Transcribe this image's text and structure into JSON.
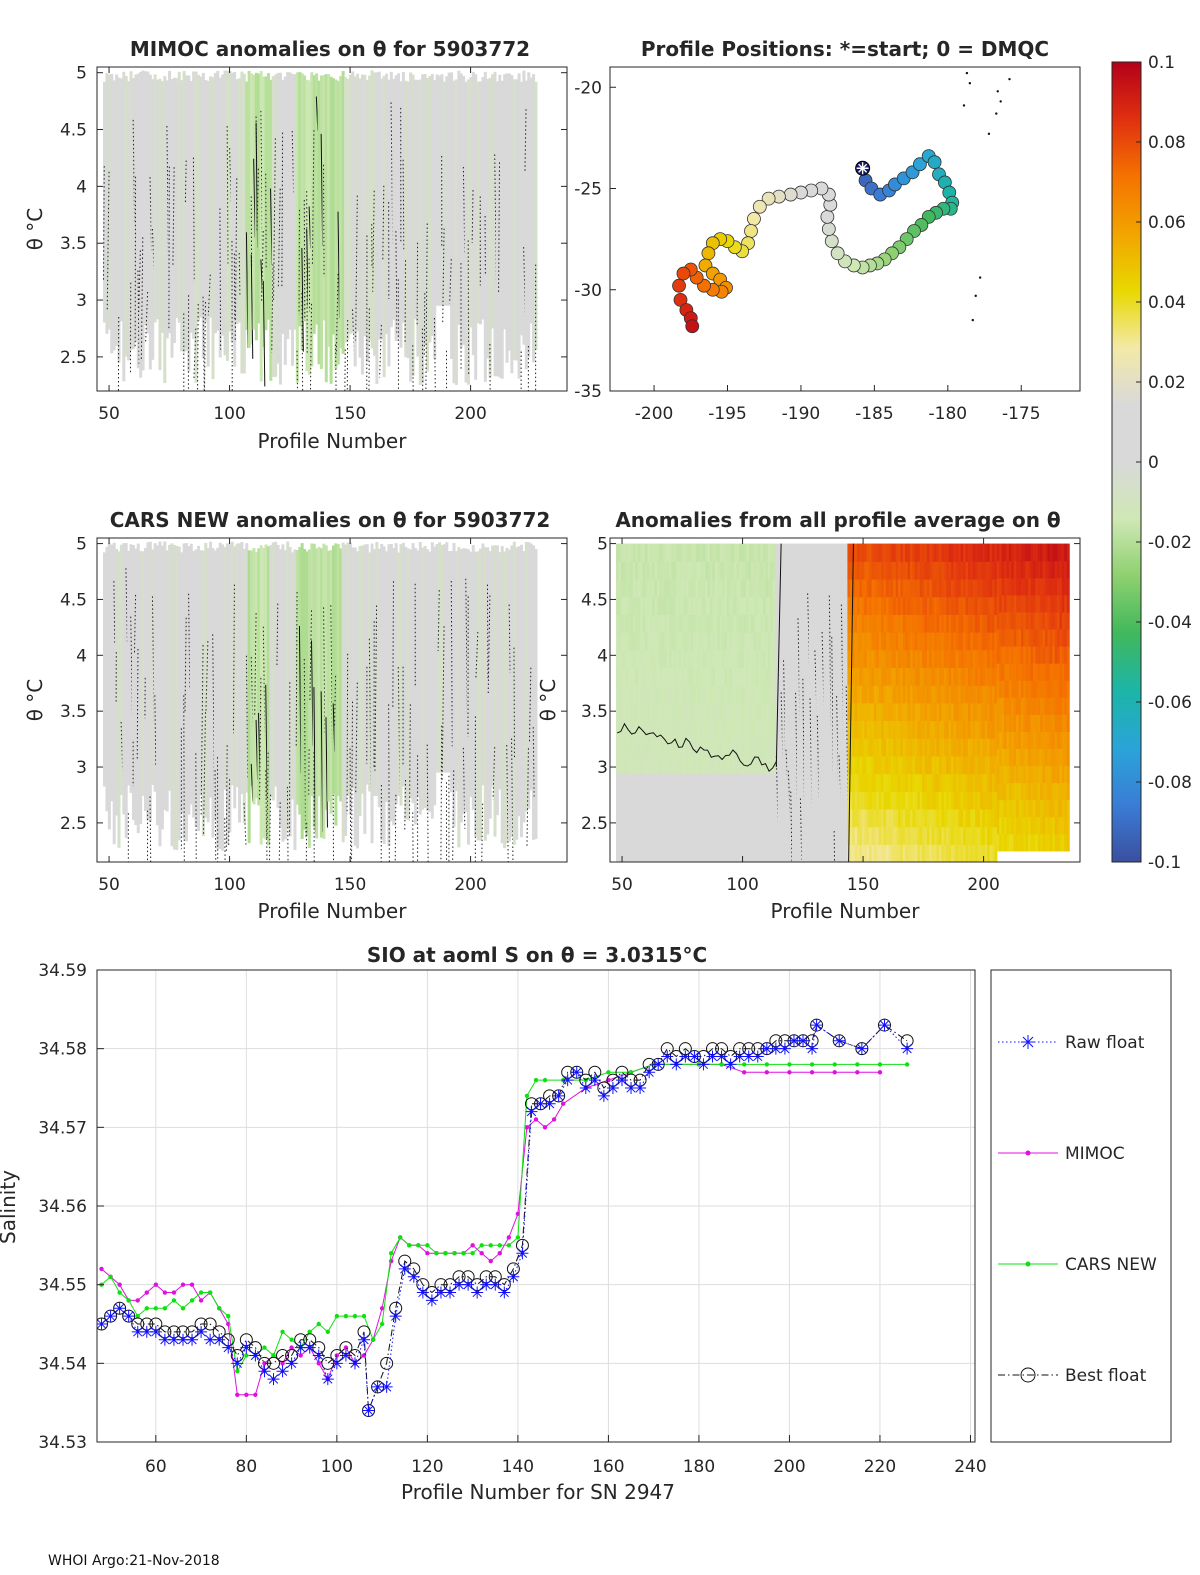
{
  "figure_id": "WHOI Argo QC figure",
  "footer": "WHOI Argo:21-Nov-2018",
  "chart_data": [
    {
      "type": "heatmap",
      "name": "mimoc-anomaly",
      "title": "MIMOC anomalies on θ  for 5903772",
      "xlabel": "Profile Number",
      "ylabel": "θ °C",
      "xlim": [
        45,
        240
      ],
      "ylim": [
        2.2,
        5.05
      ],
      "xticks": [
        50,
        100,
        150,
        200
      ],
      "yticks": [
        2.5,
        3,
        3.5,
        4,
        4.5,
        5
      ],
      "profile_start": 48,
      "profile_end": 227,
      "dominant_value": 0.0,
      "green_bands": [
        [
          107,
          117
        ],
        [
          128,
          147
        ]
      ],
      "colorbar": "shared"
    },
    {
      "type": "scatter",
      "name": "profile-positions",
      "title": "Profile Positions: *=start; 0 = DMQC",
      "xlim": [
        -203,
        -171
      ],
      "ylim": [
        -35,
        -19
      ],
      "xticks": [
        -200,
        -195,
        -190,
        -185,
        -180,
        -175
      ],
      "yticks": [
        -20,
        -25,
        -30,
        -35
      ],
      "start_marker": {
        "lon": -185.8,
        "lat": -24
      },
      "track": [
        [
          -185.8,
          -24.0
        ],
        [
          -185.6,
          -24.6
        ],
        [
          -185.2,
          -25.0
        ],
        [
          -184.6,
          -25.3
        ],
        [
          -184.0,
          -25.1
        ],
        [
          -183.6,
          -24.8
        ],
        [
          -183.0,
          -24.5
        ],
        [
          -182.4,
          -24.2
        ],
        [
          -181.9,
          -23.8
        ],
        [
          -181.3,
          -23.4
        ],
        [
          -180.9,
          -23.7
        ],
        [
          -180.6,
          -24.3
        ],
        [
          -180.2,
          -24.7
        ],
        [
          -179.9,
          -25.2
        ],
        [
          -179.7,
          -25.7
        ],
        [
          -179.8,
          -26.0
        ],
        [
          -180.3,
          -26.0
        ],
        [
          -180.8,
          -26.2
        ],
        [
          -181.3,
          -26.4
        ],
        [
          -181.8,
          -26.8
        ],
        [
          -182.3,
          -27.1
        ],
        [
          -182.8,
          -27.5
        ],
        [
          -183.3,
          -27.9
        ],
        [
          -183.8,
          -28.2
        ],
        [
          -184.3,
          -28.5
        ],
        [
          -184.8,
          -28.7
        ],
        [
          -185.3,
          -28.8
        ],
        [
          -185.8,
          -28.9
        ],
        [
          -186.4,
          -28.8
        ],
        [
          -187.0,
          -28.6
        ],
        [
          -187.5,
          -28.2
        ],
        [
          -187.9,
          -27.6
        ],
        [
          -188.1,
          -27.0
        ],
        [
          -188.2,
          -26.4
        ],
        [
          -188.0,
          -25.8
        ],
        [
          -188.1,
          -25.3
        ],
        [
          -188.6,
          -25.0
        ],
        [
          -189.3,
          -25.1
        ],
        [
          -190.0,
          -25.2
        ],
        [
          -190.7,
          -25.3
        ],
        [
          -191.5,
          -25.4
        ],
        [
          -192.2,
          -25.5
        ],
        [
          -192.8,
          -25.9
        ],
        [
          -193.2,
          -26.5
        ],
        [
          -193.4,
          -27.1
        ],
        [
          -193.6,
          -27.7
        ],
        [
          -194.0,
          -28.1
        ],
        [
          -194.5,
          -27.9
        ],
        [
          -195.0,
          -27.6
        ],
        [
          -195.5,
          -27.5
        ],
        [
          -196.0,
          -27.7
        ],
        [
          -196.3,
          -28.2
        ],
        [
          -196.5,
          -28.8
        ],
        [
          -196.0,
          -29.2
        ],
        [
          -195.5,
          -29.5
        ],
        [
          -195.1,
          -29.9
        ],
        [
          -195.4,
          -30.1
        ],
        [
          -196.0,
          -30.0
        ],
        [
          -196.6,
          -29.8
        ],
        [
          -197.1,
          -29.4
        ],
        [
          -197.5,
          -29.0
        ],
        [
          -198.0,
          -29.2
        ],
        [
          -198.3,
          -29.8
        ],
        [
          -198.2,
          -30.5
        ],
        [
          -197.8,
          -31.0
        ],
        [
          -197.5,
          -31.4
        ],
        [
          -197.4,
          -31.8
        ]
      ],
      "colorbar": "shared"
    },
    {
      "type": "heatmap",
      "name": "cars-anomaly",
      "title": "CARS NEW anomalies on θ for 5903772",
      "xlabel": "Profile Number",
      "ylabel": "θ °C",
      "xlim": [
        45,
        240
      ],
      "ylim": [
        2.15,
        5.05
      ],
      "xticks": [
        50,
        100,
        150,
        200
      ],
      "yticks": [
        2.5,
        3,
        3.5,
        4,
        4.5,
        5
      ],
      "profile_start": 48,
      "profile_end": 227,
      "dominant_value": 0.0,
      "green_bands": [
        [
          108,
          116
        ],
        [
          128,
          146
        ]
      ],
      "colorbar": "shared"
    },
    {
      "type": "heatmap",
      "name": "profile-average-anomaly",
      "title": "Anomalies from all profile average on θ",
      "xlabel": "Profile Number",
      "ylabel": "θ °C",
      "xlim": [
        45,
        240
      ],
      "ylim": [
        2.15,
        5.05
      ],
      "xticks": [
        50,
        100,
        150,
        200
      ],
      "yticks": [
        2.5,
        3,
        3.5,
        4,
        4.5,
        5
      ],
      "segments": [
        {
          "from": 48,
          "to": 114,
          "value": -0.012
        },
        {
          "from": 114,
          "to": 144,
          "value": 0.0
        },
        {
          "from": 144,
          "to": 236,
          "value": 0.07
        }
      ],
      "colorbar": "shared"
    },
    {
      "type": "colorbar",
      "name": "colorbar",
      "range": [
        -0.1,
        0.1
      ],
      "ticks": [
        "0.1",
        "0.08",
        "0.06",
        "0.04",
        "0.02",
        "0",
        "-0.02",
        "-0.04",
        "-0.06",
        "-0.08",
        "-0.1"
      ],
      "stops": [
        "#3b4fa0",
        "#3a7dd6",
        "#2aa4d8",
        "#1cb5a7",
        "#40b85c",
        "#8ed06f",
        "#cfe8b5",
        "#d9d9d9",
        "#d9d9d9",
        "#f3e9a7",
        "#e8d800",
        "#f2a400",
        "#f57200",
        "#e03010",
        "#b40018"
      ]
    },
    {
      "type": "line",
      "name": "salinity-timeseries",
      "title": "SIO at aoml S on θ = 3.0315°C",
      "xlabel": "Profile Number for SN 2947",
      "ylabel": "Salinity",
      "xlim": [
        47,
        241
      ],
      "ylim": [
        34.53,
        34.59
      ],
      "xticks": [
        60,
        80,
        100,
        120,
        140,
        160,
        180,
        200,
        220,
        240
      ],
      "yticks": [
        34.53,
        34.54,
        34.55,
        34.56,
        34.57,
        34.58,
        34.59
      ],
      "grid": true,
      "series": [
        {
          "name": "Raw float",
          "color": "#1010ff",
          "marker": "star",
          "dash": "dotted",
          "x": [
            48,
            50,
            52,
            54,
            56,
            58,
            60,
            62,
            64,
            66,
            68,
            70,
            72,
            74,
            76,
            78,
            80,
            82,
            84,
            86,
            88,
            90,
            92,
            94,
            96,
            98,
            100,
            102,
            104,
            106,
            107,
            109,
            111,
            113,
            115,
            117,
            119,
            121,
            123,
            125,
            127,
            129,
            131,
            133,
            135,
            137,
            139,
            141,
            143,
            145,
            147,
            149,
            151,
            153,
            155,
            157,
            159,
            161,
            163,
            165,
            167,
            169,
            171,
            173,
            175,
            177,
            179,
            181,
            183,
            185,
            187,
            189,
            191,
            193,
            195,
            197,
            199,
            201,
            203,
            205,
            206,
            211,
            216,
            221,
            226
          ],
          "y": [
            34.545,
            34.546,
            34.547,
            34.546,
            34.544,
            34.544,
            34.544,
            34.543,
            34.543,
            34.543,
            34.543,
            34.544,
            34.543,
            34.543,
            34.542,
            34.54,
            34.542,
            34.541,
            34.539,
            34.538,
            34.539,
            34.54,
            34.542,
            34.542,
            34.541,
            34.538,
            34.54,
            34.541,
            34.54,
            34.543,
            34.534,
            34.537,
            34.537,
            34.546,
            34.552,
            34.551,
            34.549,
            34.548,
            34.549,
            34.549,
            34.55,
            34.55,
            34.549,
            34.55,
            34.55,
            34.549,
            34.551,
            34.554,
            34.572,
            34.573,
            34.573,
            34.574,
            34.576,
            34.577,
            34.575,
            34.576,
            34.574,
            34.575,
            34.576,
            34.575,
            34.575,
            34.577,
            34.578,
            34.579,
            34.578,
            34.579,
            34.579,
            34.578,
            34.579,
            34.579,
            34.578,
            34.579,
            34.579,
            34.579,
            34.58,
            34.58,
            34.58,
            34.581,
            34.581,
            34.58,
            34.583,
            34.581,
            34.58,
            34.583,
            34.58
          ]
        },
        {
          "name": "MIMOC",
          "color": "#e010e0",
          "marker": "dot",
          "dash": "solid",
          "x": [
            48,
            50,
            52,
            54,
            56,
            58,
            60,
            62,
            64,
            66,
            68,
            70,
            72,
            74,
            76,
            78,
            80,
            82,
            84,
            86,
            88,
            90,
            92,
            94,
            96,
            98,
            100,
            102,
            104,
            106,
            108,
            110,
            112,
            114,
            116,
            118,
            120,
            122,
            124,
            126,
            128,
            130,
            132,
            134,
            136,
            138,
            140,
            142,
            144,
            146,
            148,
            150,
            155,
            160,
            165,
            170,
            175,
            180,
            185,
            190,
            195,
            200,
            205,
            210,
            215,
            220
          ],
          "y": [
            34.552,
            34.551,
            34.55,
            34.548,
            34.548,
            34.549,
            34.55,
            34.549,
            34.549,
            34.55,
            34.55,
            34.548,
            34.549,
            34.547,
            34.545,
            34.536,
            34.536,
            34.536,
            34.54,
            34.541,
            34.54,
            34.542,
            34.541,
            34.542,
            34.54,
            34.538,
            34.541,
            34.542,
            34.54,
            34.541,
            34.543,
            34.547,
            34.553,
            34.556,
            34.555,
            34.555,
            34.554,
            34.554,
            34.554,
            34.554,
            34.554,
            34.555,
            34.554,
            34.553,
            34.554,
            34.556,
            34.559,
            34.57,
            34.571,
            34.57,
            34.571,
            34.573,
            34.575,
            34.576,
            34.577,
            34.578,
            34.578,
            34.578,
            34.578,
            34.577,
            34.577,
            34.577,
            34.577,
            34.577,
            34.577,
            34.577
          ]
        },
        {
          "name": "CARS NEW",
          "color": "#10e010",
          "marker": "dot",
          "dash": "solid",
          "x": [
            48,
            50,
            52,
            54,
            56,
            58,
            60,
            62,
            64,
            66,
            68,
            70,
            72,
            74,
            76,
            78,
            80,
            82,
            84,
            86,
            88,
            90,
            92,
            94,
            96,
            98,
            100,
            102,
            104,
            106,
            108,
            110,
            112,
            114,
            116,
            118,
            120,
            122,
            124,
            126,
            128,
            130,
            132,
            134,
            136,
            138,
            140,
            142,
            144,
            146,
            150,
            155,
            160,
            165,
            170,
            175,
            180,
            185,
            190,
            195,
            200,
            205,
            210,
            215,
            220,
            226
          ],
          "y": [
            34.55,
            34.551,
            34.549,
            34.548,
            34.546,
            34.547,
            34.547,
            34.547,
            34.548,
            34.547,
            34.548,
            34.549,
            34.549,
            34.547,
            34.546,
            34.539,
            34.541,
            34.541,
            34.542,
            34.541,
            34.544,
            34.543,
            34.542,
            34.544,
            34.545,
            34.544,
            34.546,
            34.546,
            34.546,
            34.546,
            34.543,
            34.545,
            34.554,
            34.556,
            34.555,
            34.555,
            34.555,
            34.554,
            34.554,
            34.554,
            34.554,
            34.554,
            34.555,
            34.555,
            34.555,
            34.555,
            34.556,
            34.574,
            34.576,
            34.576,
            34.576,
            34.576,
            34.577,
            34.577,
            34.578,
            34.578,
            34.578,
            34.578,
            34.578,
            34.578,
            34.578,
            34.578,
            34.578,
            34.578,
            34.578,
            34.578
          ]
        },
        {
          "name": "Best float",
          "color": "#111111",
          "marker": "circle",
          "dash": "dashdot",
          "x": [
            48,
            50,
            52,
            54,
            56,
            58,
            60,
            62,
            64,
            66,
            68,
            70,
            72,
            74,
            76,
            78,
            80,
            82,
            84,
            86,
            88,
            90,
            92,
            94,
            96,
            98,
            100,
            102,
            104,
            106,
            107,
            109,
            111,
            113,
            115,
            117,
            119,
            121,
            123,
            125,
            127,
            129,
            131,
            133,
            135,
            137,
            139,
            141,
            143,
            145,
            147,
            149,
            151,
            153,
            155,
            157,
            159,
            161,
            163,
            165,
            167,
            169,
            171,
            173,
            175,
            177,
            179,
            181,
            183,
            185,
            187,
            189,
            191,
            193,
            195,
            197,
            199,
            201,
            203,
            205,
            206,
            211,
            216,
            221,
            226
          ],
          "y": [
            34.545,
            34.546,
            34.547,
            34.546,
            34.545,
            34.545,
            34.545,
            34.544,
            34.544,
            34.544,
            34.544,
            34.545,
            34.545,
            34.544,
            34.543,
            34.541,
            34.543,
            34.542,
            34.54,
            34.54,
            34.541,
            34.541,
            34.543,
            34.543,
            34.542,
            34.54,
            34.541,
            34.542,
            34.541,
            34.544,
            34.534,
            34.537,
            34.54,
            34.547,
            34.553,
            34.552,
            34.55,
            34.549,
            34.55,
            34.55,
            34.551,
            34.551,
            34.55,
            34.551,
            34.551,
            34.55,
            34.552,
            34.555,
            34.573,
            34.573,
            34.574,
            34.574,
            34.577,
            34.577,
            34.576,
            34.577,
            34.575,
            34.576,
            34.577,
            34.576,
            34.576,
            34.578,
            34.578,
            34.58,
            34.579,
            34.58,
            34.579,
            34.579,
            34.58,
            34.58,
            34.579,
            34.58,
            34.58,
            34.58,
            34.58,
            34.581,
            34.581,
            34.581,
            34.581,
            34.581,
            34.583,
            34.581,
            34.58,
            34.583,
            34.581
          ]
        }
      ]
    }
  ]
}
